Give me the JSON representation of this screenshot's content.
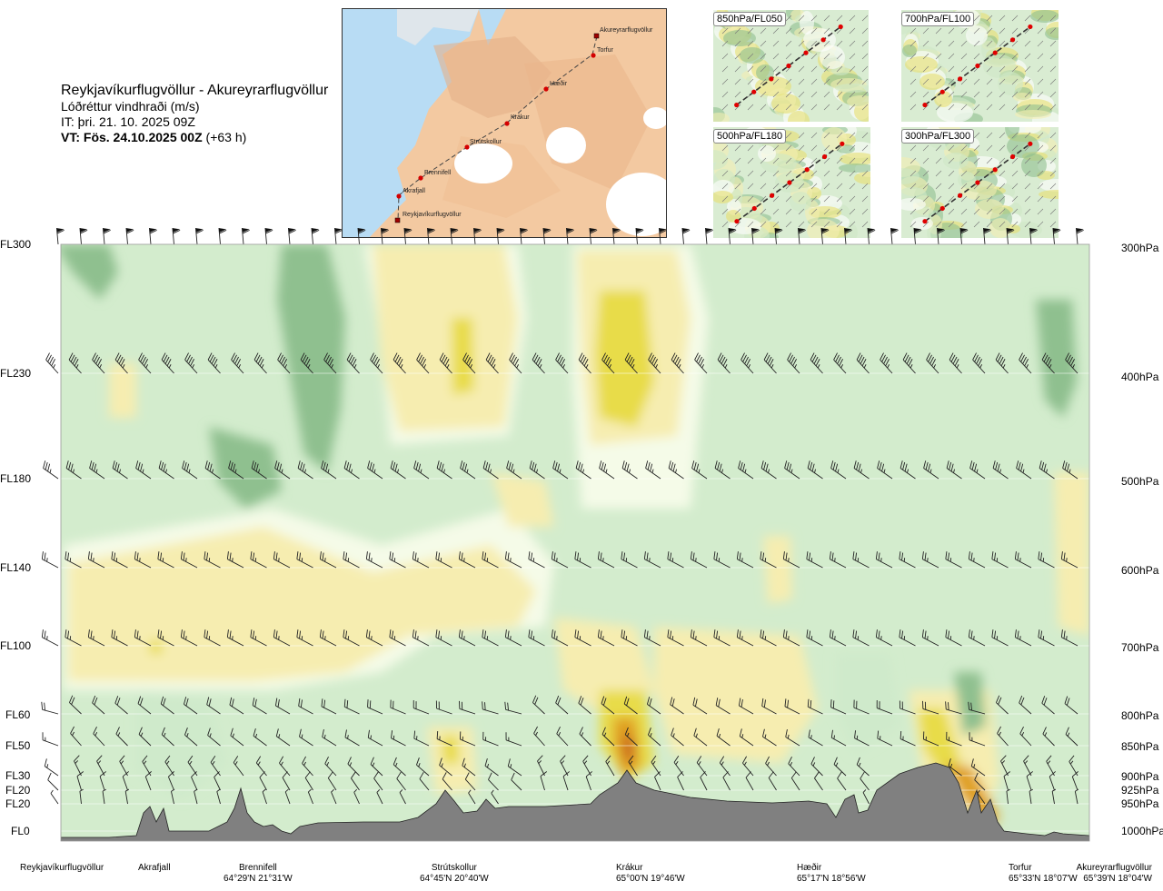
{
  "header": {
    "route": "Reykjavíkurflugvöllur - Akureyrarflugvöllur",
    "quantity": "Lóðréttur vindhraði (m/s)",
    "issue_time": "IT: þri. 21. 10. 2025 09Z",
    "valid_time_bold": "VT: Fös. 24.10.2025 00Z",
    "valid_time_rest": " (+63 h)"
  },
  "map": {
    "points": [
      "Akureyrarflugvöllur",
      "Torfur",
      "Hæðir",
      "Krákur",
      "Strútskollur",
      "Brennifell",
      "Akrafjall",
      "Reykjavíkurflugvöllur"
    ]
  },
  "insets": [
    "850hPa/FL050",
    "700hPa/FL100",
    "500hPa/FL180",
    "300hPa/FL300"
  ],
  "levels": [
    {
      "fl": "FL300",
      "hpa": "300hPa"
    },
    {
      "fl": "FL230",
      "hpa": "400hPa"
    },
    {
      "fl": "FL180",
      "hpa": "500hPa"
    },
    {
      "fl": "FL140",
      "hpa": "600hPa"
    },
    {
      "fl": "FL100",
      "hpa": "700hPa"
    },
    {
      "fl": "FL60",
      "hpa": "800hPa"
    },
    {
      "fl": "FL50",
      "hpa": "850hPa"
    },
    {
      "fl": "FL30",
      "hpa": "900hPa"
    },
    {
      "fl": "FL20",
      "hpa": "925hPa"
    },
    {
      "fl": "FL20",
      "hpa": "950hPa"
    },
    {
      "fl": "FL0",
      "hpa": "1000hPa"
    }
  ],
  "places": [
    {
      "name": "Reykjavíkurflugvöllur",
      "coord": ""
    },
    {
      "name": "Akrafjall",
      "coord": ""
    },
    {
      "name": "Brennifell",
      "coord": "64°29'N 21°31'W"
    },
    {
      "name": "Strútskollur",
      "coord": "64°45'N 20°40'W"
    },
    {
      "name": "Krákur",
      "coord": "65°00'N 19°46'W"
    },
    {
      "name": "Hæðir",
      "coord": "65°17'N 18°56'W"
    },
    {
      "name": "Torfur",
      "coord": "65°33'N 18°07'W"
    },
    {
      "name": "Akureyrarflugvöllur",
      "coord": "65°39'N 18°04'W"
    }
  ],
  "colors": {
    "sink_strong": "#8fc08f",
    "sink": "#cfeacb",
    "neutral": "#f5fbe8",
    "rise_weak": "#f6edb0",
    "rise": "#e8dc4a",
    "rise_strong": "#e0a020",
    "rise_max": "#c86420",
    "terrain": "#808080"
  },
  "chart_data": {
    "type": "heatmap",
    "title": "Reykjavíkurflugvöllur - Akureyrarflugvöllur",
    "quantity": "Lóðréttur vindhraði (m/s)",
    "x_categories": [
      "Reykjavíkurflugvöllur",
      "Akrafjall",
      "Brennifell",
      "Strútskollur",
      "Krákur",
      "Hæðir",
      "Torfur",
      "Akureyrarflugvöllur"
    ],
    "y_levels_hpa": [
      300,
      400,
      500,
      600,
      700,
      800,
      850,
      900,
      925,
      950,
      1000
    ],
    "y_levels_fl": [
      "FL300",
      "FL230",
      "FL180",
      "FL140",
      "FL100",
      "FL60",
      "FL50",
      "FL30",
      "FL20",
      "FL20",
      "FL0"
    ],
    "y_scale": "pressure (inverted)",
    "grid": false,
    "legend": "none",
    "barbs": "wind barbs along each pressure level"
  }
}
